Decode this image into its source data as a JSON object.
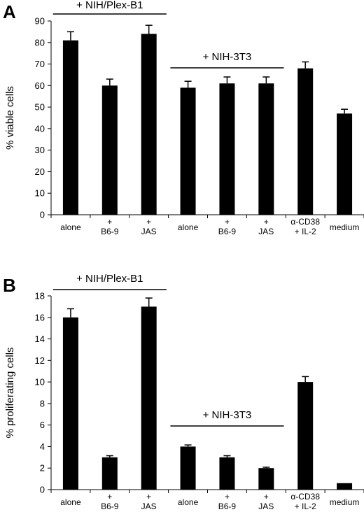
{
  "chart_data": [
    {
      "type": "bar",
      "panel_label": "A",
      "ylabel": "% viable cells",
      "ylim": [
        0,
        90
      ],
      "yticks": [
        0,
        10,
        20,
        30,
        40,
        50,
        60,
        70,
        80,
        90
      ],
      "categories": [
        [
          "alone"
        ],
        [
          "+",
          "B6-9"
        ],
        [
          "+",
          "JAS"
        ],
        [
          "alone"
        ],
        [
          "+",
          "B6-9"
        ],
        [
          "+",
          "JAS"
        ],
        [
          "α-CD38",
          "+ IL-2"
        ],
        [
          "medium"
        ]
      ],
      "values": [
        81,
        60,
        84,
        59,
        61,
        61,
        68,
        47
      ],
      "errors": [
        4,
        3,
        4,
        3,
        3,
        3,
        3,
        2
      ],
      "bar_color": "#000000",
      "groups": [
        {
          "label": "+ NIH/Plex-B1",
          "from": 0,
          "to": 2
        },
        {
          "label": "+ NIH-3T3",
          "from": 3,
          "to": 5
        }
      ],
      "grid": false
    },
    {
      "type": "bar",
      "panel_label": "B",
      "ylabel": "% proliferating cells",
      "ylim": [
        0,
        18
      ],
      "yticks": [
        0,
        2,
        4,
        6,
        8,
        10,
        12,
        14,
        16,
        18
      ],
      "categories": [
        [
          "alone"
        ],
        [
          "+",
          "B6-9"
        ],
        [
          "+",
          "JAS"
        ],
        [
          "alone"
        ],
        [
          "+",
          "B6-9"
        ],
        [
          "+",
          "JAS"
        ],
        [
          "α-CD38",
          "+ IL-2"
        ],
        [
          "medium"
        ]
      ],
      "values": [
        16,
        3,
        17,
        4,
        3,
        2,
        10,
        0.6
      ],
      "errors": [
        0.8,
        0.15,
        0.8,
        0.15,
        0.15,
        0.08,
        0.5,
        0
      ],
      "bar_color": "#000000",
      "groups": [
        {
          "label": "+ NIH/Plex-B1",
          "from": 0,
          "to": 2
        },
        {
          "label": "+ NIH-3T3",
          "from": 3,
          "to": 5
        }
      ],
      "grid": false
    }
  ]
}
